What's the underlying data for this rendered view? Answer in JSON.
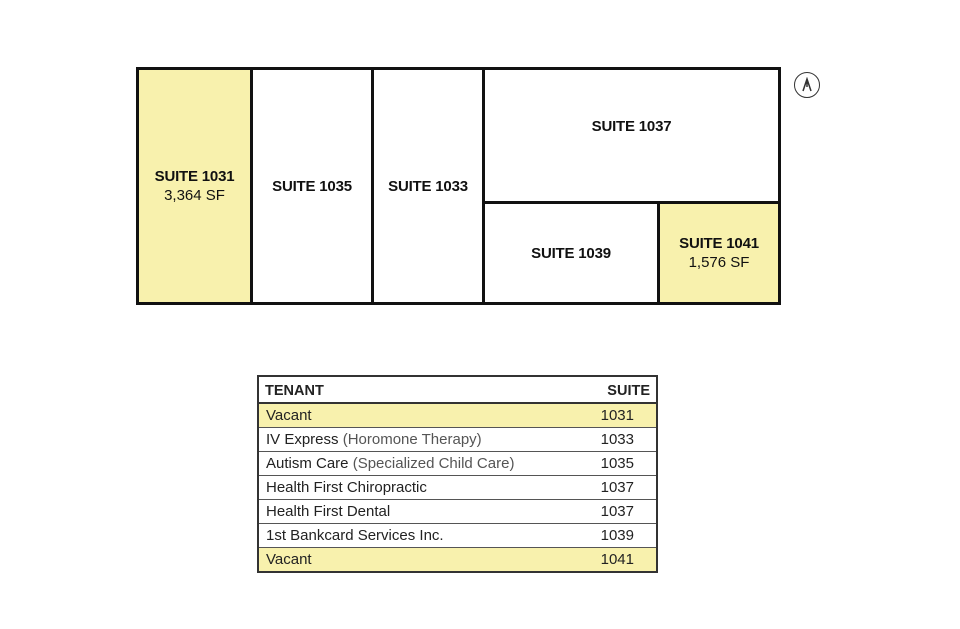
{
  "floor_plan": {
    "suites": [
      {
        "name": "SUITE 1031",
        "area": "3,364 SF",
        "vacant": true
      },
      {
        "name": "SUITE 1035",
        "vacant": false
      },
      {
        "name": "SUITE 1033",
        "vacant": false
      },
      {
        "name": "SUITE 1037",
        "vacant": false
      },
      {
        "name": "SUITE 1039",
        "vacant": false
      },
      {
        "name": "SUITE 1041",
        "area": "1,576 SF",
        "vacant": true
      }
    ],
    "vacant_color": "#f8f1ad",
    "north_icon": "north-arrow-icon"
  },
  "table": {
    "headers": {
      "tenant": "TENANT",
      "suite": "SUITE"
    },
    "rows": [
      {
        "tenant": "Vacant",
        "note": "",
        "suite": "1031",
        "vacant": true
      },
      {
        "tenant": "IV Express",
        "note": "(Horomone Therapy)",
        "suite": "1033",
        "vacant": false
      },
      {
        "tenant": "Autism Care",
        "note": "(Specialized Child Care)",
        "suite": "1035",
        "vacant": false
      },
      {
        "tenant": "Health First Chiropractic",
        "note": "",
        "suite": "1037",
        "vacant": false
      },
      {
        "tenant": "Health First Dental",
        "note": "",
        "suite": "1037",
        "vacant": false
      },
      {
        "tenant": "1st Bankcard Services Inc.",
        "note": "",
        "suite": "1039",
        "vacant": false
      },
      {
        "tenant": "Vacant",
        "note": "",
        "suite": "1041",
        "vacant": true
      }
    ]
  }
}
